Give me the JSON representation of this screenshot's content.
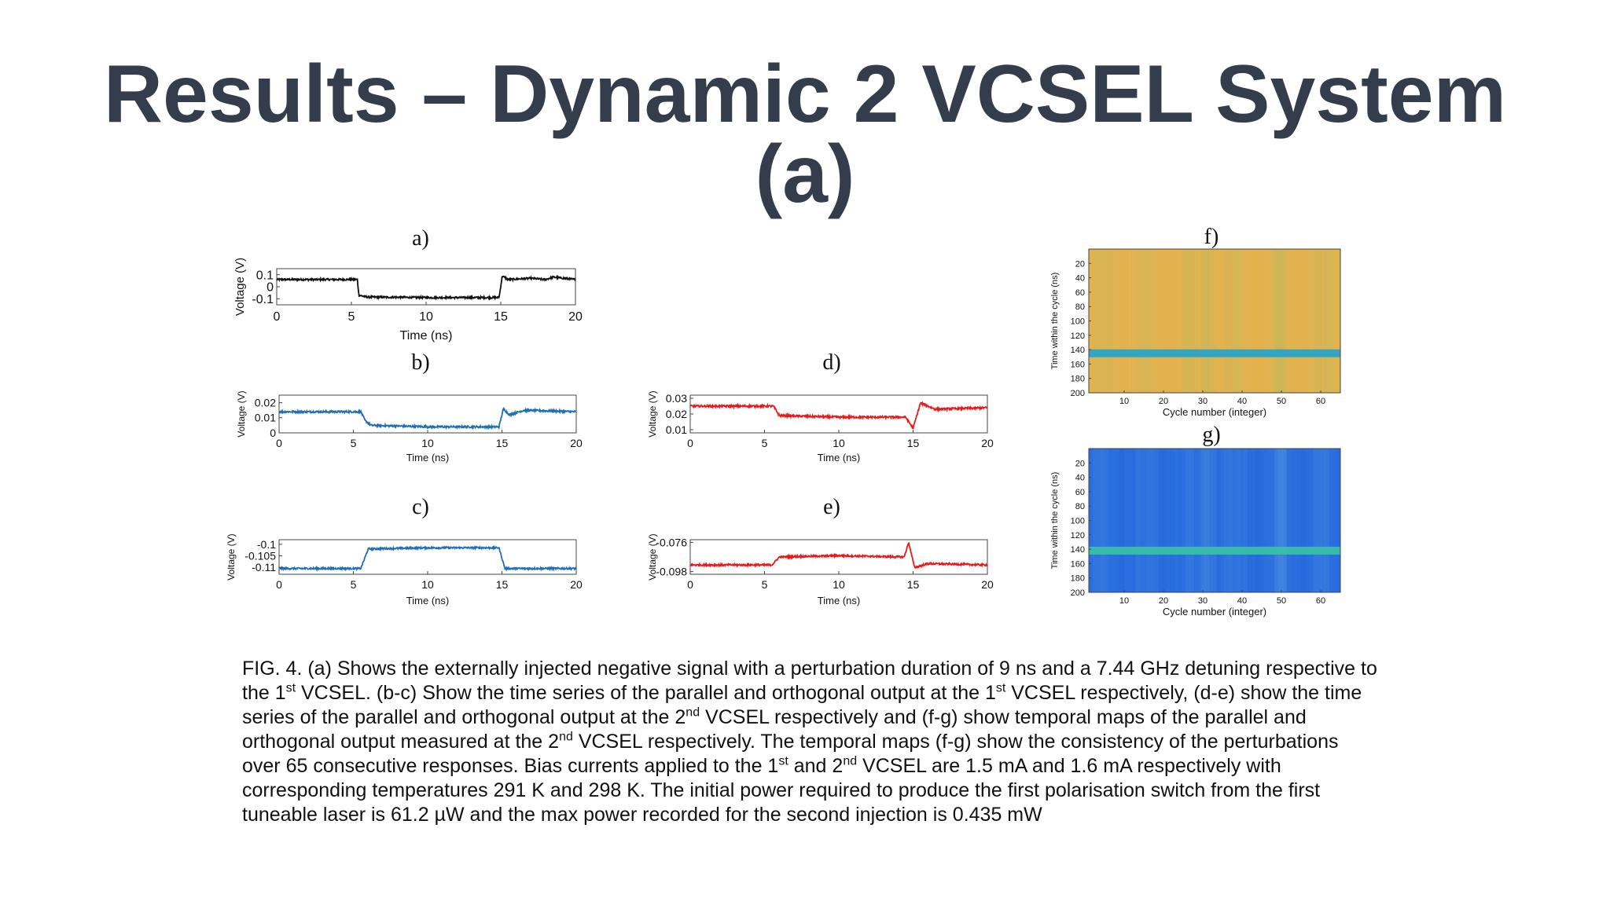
{
  "slide": {
    "title_line1": "Results – Dynamic 2 VCSEL System",
    "title_line2": "(a)"
  },
  "caption": {
    "p1": "FIG. 4. (a) Shows the externally injected negative signal with a perturbation duration of 9 ns and a 7.44 GHz detuning respective to the 1",
    "s1": "st",
    "p2": " VCSEL. (b-c) Show the time series of the parallel and orthogonal output at the 1",
    "s2": "st",
    "p3": " VCSEL respectively, (d-e) show the time series of the parallel and orthogonal output at the 2",
    "s3": "nd",
    "p4": " VCSEL respectively and (f-g) show temporal maps of the parallel and orthogonal output measured at the 2",
    "s4": "nd",
    "p5": " VCSEL respectively. The temporal maps (f-g) show the consistency of the perturbations over 65 consecutive responses. Bias currents applied to the 1",
    "s5": "st",
    "p6": " and 2",
    "s6": "nd",
    "p7": " VCSEL are 1.5 mA and 1.6 mA respectively with corresponding temperatures 291 K and 298 K. The initial power required to produce the first polarisation switch from the first tuneable laser is 61.2 µW and the max power recorded for the second injection is 0.435 mW"
  },
  "chart_data": [
    {
      "id": "a",
      "label": "a)",
      "type": "line",
      "color": "#111111",
      "xlabel": "Time (ns)",
      "ylabel": "Voltage (V)",
      "xlim": [
        0,
        20
      ],
      "ylim": [
        -0.15,
        0.15
      ],
      "xticks": [
        0,
        5,
        10,
        15,
        20
      ],
      "yticks": [
        0.1,
        0,
        -0.1
      ],
      "ytick_labels": [
        "0.1",
        "0",
        "-0.1"
      ],
      "series": [
        {
          "x": [
            0,
            5.4,
            5.5,
            6,
            10,
            14.8,
            14.9,
            15.1,
            15.5,
            17,
            18,
            18.5,
            20
          ],
          "y": [
            0.06,
            0.06,
            -0.07,
            -0.085,
            -0.09,
            -0.09,
            -0.08,
            0.09,
            0.06,
            0.07,
            0.06,
            0.08,
            0.06
          ]
        }
      ]
    },
    {
      "id": "b",
      "label": "b)",
      "type": "line",
      "color": "#1f6fb4",
      "xlabel": "Time (ns)",
      "ylabel": "Voltage (V)",
      "xlim": [
        0,
        20
      ],
      "ylim": [
        0,
        0.025
      ],
      "xticks": [
        0,
        5,
        10,
        15,
        20
      ],
      "yticks": [
        0.02,
        0.01,
        0
      ],
      "ytick_labels": [
        "0.02",
        "0.01",
        "0"
      ],
      "series": [
        {
          "x": [
            0,
            5.5,
            5.8,
            6.2,
            10,
            14.8,
            15.1,
            15.5,
            16.5,
            20
          ],
          "y": [
            0.014,
            0.014,
            0.008,
            0.005,
            0.004,
            0.004,
            0.016,
            0.012,
            0.015,
            0.014
          ]
        }
      ]
    },
    {
      "id": "c",
      "label": "c)",
      "type": "line",
      "color": "#1f6fb4",
      "xlabel": "Time (ns)",
      "ylabel": "Voltage (V)",
      "xlim": [
        0,
        20
      ],
      "ylim": [
        -0.113,
        -0.098
      ],
      "xticks": [
        0,
        5,
        10,
        15,
        20
      ],
      "yticks": [
        -0.1,
        -0.105,
        -0.11
      ],
      "ytick_labels": [
        "-0.1",
        "-0.105",
        "-0.11"
      ],
      "series": [
        {
          "x": [
            0,
            5.5,
            6,
            10,
            14.8,
            15.2,
            20
          ],
          "y": [
            -0.1105,
            -0.1105,
            -0.102,
            -0.1015,
            -0.1015,
            -0.1105,
            -0.1105
          ]
        }
      ]
    },
    {
      "id": "d",
      "label": "d)",
      "type": "line",
      "color": "#e8191b",
      "xlabel": "Time (ns)",
      "ylabel": "Voltage (V)",
      "xlim": [
        0,
        20
      ],
      "ylim": [
        0.008,
        0.032
      ],
      "xticks": [
        0,
        5,
        10,
        15,
        20
      ],
      "yticks": [
        0.03,
        0.02,
        0.01
      ],
      "ytick_labels": [
        "0.03",
        "0.02",
        "0.01"
      ],
      "series": [
        {
          "x": [
            0,
            5.6,
            6,
            10,
            14.5,
            15.0,
            15.5,
            16.5,
            20
          ],
          "y": [
            0.025,
            0.025,
            0.019,
            0.018,
            0.018,
            0.011,
            0.027,
            0.023,
            0.024
          ]
        }
      ]
    },
    {
      "id": "e",
      "label": "e)",
      "type": "line",
      "color": "#e8191b",
      "xlabel": "Time (ns)",
      "ylabel": "Voltage (V)",
      "xlim": [
        0,
        20
      ],
      "ylim": [
        -0.1,
        -0.074
      ],
      "xticks": [
        0,
        5,
        10,
        15,
        20
      ],
      "yticks": [
        -0.076,
        -0.098
      ],
      "ytick_labels": [
        "-0.076",
        "-0.098"
      ],
      "series": [
        {
          "x": [
            0,
            5.5,
            6,
            10,
            14.4,
            14.7,
            15.1,
            16,
            20
          ],
          "y": [
            -0.093,
            -0.093,
            -0.087,
            -0.086,
            -0.087,
            -0.076,
            -0.095,
            -0.092,
            -0.093
          ]
        }
      ]
    },
    {
      "id": "f",
      "label": "f)",
      "type": "heatmap",
      "xlabel": "Cycle number (integer)",
      "ylabel": "Time within the cycle (ns)",
      "xlim": [
        1,
        65
      ],
      "ylim": [
        0,
        200
      ],
      "xticks": [
        10,
        20,
        30,
        40,
        50,
        60
      ],
      "yticks": [
        20,
        40,
        60,
        80,
        100,
        120,
        140,
        160,
        180,
        200
      ],
      "base_color": "#e2b450",
      "band_color": "#2aa3c8",
      "band_at": 145
    },
    {
      "id": "g",
      "label": "g)",
      "type": "heatmap",
      "xlabel": "Cycle number (integer)",
      "ylabel": "Time within the cycle (ns)",
      "xlim": [
        1,
        65
      ],
      "ylim": [
        0,
        200
      ],
      "xticks": [
        10,
        20,
        30,
        40,
        50,
        60
      ],
      "yticks": [
        20,
        40,
        60,
        80,
        100,
        120,
        140,
        160,
        180,
        200
      ],
      "base_color": "#2a6fe0",
      "band_color": "#37c0a8",
      "band_at": 142
    }
  ]
}
